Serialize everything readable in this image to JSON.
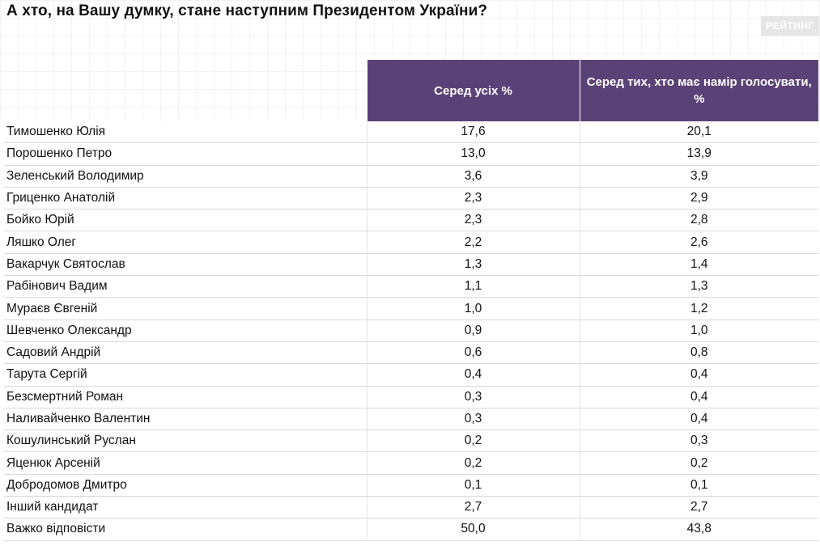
{
  "title": "А хто, на Вашу думку, стане наступним Президентом України?",
  "logo": {
    "text": "РЕЙТИНГ"
  },
  "colors": {
    "header_bg": "#5b4276",
    "header_text": "#ffffff",
    "row_border": "#d9d9d9"
  },
  "chart_data": {
    "type": "table",
    "columns": [
      "",
      "Серед усіх %",
      "Серед тих, хто має намір голосувати, %"
    ],
    "rows": [
      [
        "Тимошенко Юлія",
        "17,6",
        "20,1"
      ],
      [
        "Порошенко Петро",
        "13,0",
        "13,9"
      ],
      [
        "Зеленський Володимир",
        "3,6",
        "3,9"
      ],
      [
        "Гриценко Анатолій",
        "2,3",
        "2,9"
      ],
      [
        "Бойко Юрій",
        "2,3",
        "2,8"
      ],
      [
        "Ляшко Олег",
        "2,2",
        "2,6"
      ],
      [
        "Вакарчук Святослав",
        "1,3",
        "1,4"
      ],
      [
        "Рабінович Вадим",
        "1,1",
        "1,3"
      ],
      [
        "Мураєв Євгеній",
        "1,0",
        "1,2"
      ],
      [
        "Шевченко Олександр",
        "0,9",
        "1,0"
      ],
      [
        "Садовий Андрій",
        "0,6",
        "0,8"
      ],
      [
        "Тарута Сергій",
        "0,4",
        "0,4"
      ],
      [
        "Безсмертний Роман",
        "0,3",
        "0,4"
      ],
      [
        "Наливайченко Валентин",
        "0,3",
        "0,4"
      ],
      [
        "Кошулинський Руслан",
        "0,2",
        "0,3"
      ],
      [
        "Яценюк Арсеній",
        "0,2",
        "0,2"
      ],
      [
        "Добродомов Дмитро",
        "0,1",
        "0,1"
      ],
      [
        "Інший кандидат",
        "2,7",
        "2,7"
      ],
      [
        "Важко відповісти",
        "50,0",
        "43,8"
      ]
    ]
  }
}
